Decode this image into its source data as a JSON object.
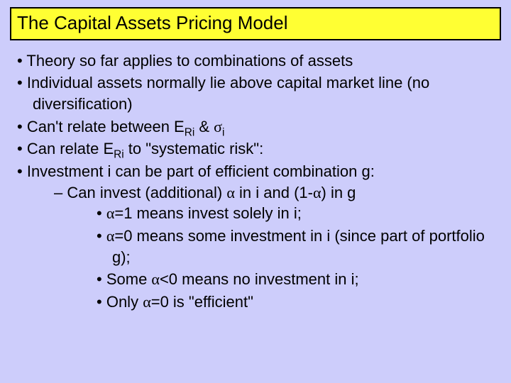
{
  "colors": {
    "background": "#cdcdfb",
    "title_fill": "#ffff33",
    "title_border": "#000000",
    "text": "#000000"
  },
  "typography": {
    "family": "Comic Sans MS",
    "title_size_pt": 26,
    "body_size_pt": 22
  },
  "title": "The Capital Assets Pricing Model",
  "bullets": {
    "b1": "Theory so far applies to combinations of assets",
    "b2": "Individual assets normally lie above capital market line (no diversification)",
    "b3_pre": "Can't relate between E",
    "b3_sub1": "Ri",
    "b3_mid": " & ",
    "b3_sigma": "σ",
    "b3_sub2": "i",
    "b4_pre": "Can relate E",
    "b4_sub": "Ri",
    "b4_post": " to \"systematic risk\":",
    "b5": "Investment i can be part of efficient combination g:",
    "b5a_pre": "Can invest (additional) ",
    "b5a_alpha1": "α",
    "b5a_mid": " in i and (1-",
    "b5a_alpha2": "α",
    "b5a_post": ") in g",
    "b5a1_alpha": "α",
    "b5a1_text": "=1 means invest solely in i;",
    "b5a2_alpha": "α",
    "b5a2_text": "=0 means some investment in i (since part of portfolio g);",
    "b5a3_pre": "Some ",
    "b5a3_alpha": "α",
    "b5a3_post": "<0 means no investment in i;",
    "b5a4_pre": "Only ",
    "b5a4_alpha": "α",
    "b5a4_post": "=0 is \"efficient\""
  }
}
